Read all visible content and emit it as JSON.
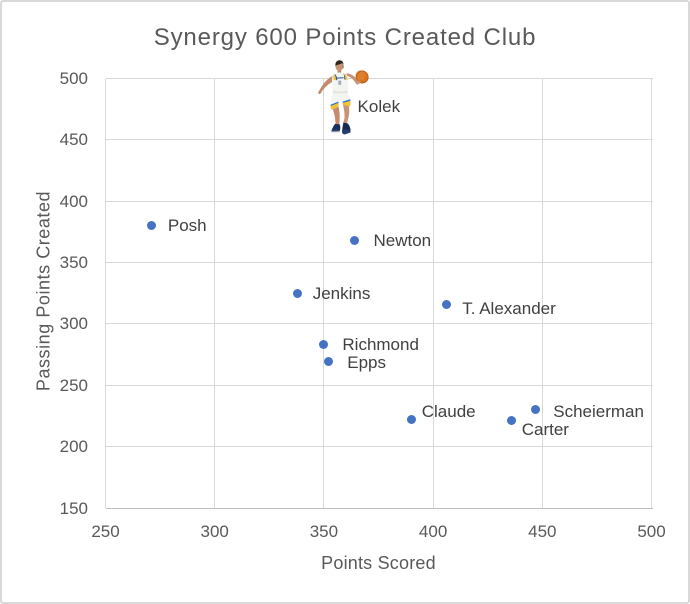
{
  "chart_data": {
    "type": "scatter",
    "title": "Synergy 600 Points Created Club",
    "xlabel": "Points Scored",
    "ylabel": "Passing Points Created",
    "xlim": [
      250,
      500
    ],
    "ylim": [
      150,
      500
    ],
    "x_ticks": [
      250,
      300,
      350,
      400,
      450,
      500
    ],
    "y_ticks": [
      150,
      200,
      250,
      300,
      350,
      400,
      450,
      500
    ],
    "grid": true,
    "legend": false,
    "series_name": "Players",
    "points": [
      {
        "label": "Kolek",
        "x": 359,
        "y": 484,
        "marker": "basketball-player-image",
        "label_offset": [
          14,
          8.5
        ]
      },
      {
        "label": "Posh",
        "x": 271,
        "y": 380,
        "marker": "dot",
        "label_offset": [
          16.5,
          -0.5
        ]
      },
      {
        "label": "Newton",
        "x": 364,
        "y": 368,
        "marker": "dot",
        "label_offset": [
          19,
          0
        ]
      },
      {
        "label": "Jenkins",
        "x": 338,
        "y": 325,
        "marker": "dot",
        "label_offset": [
          15,
          0
        ]
      },
      {
        "label": "T. Alexander",
        "x": 406,
        "y": 316,
        "marker": "dot",
        "label_offset": [
          16,
          4
        ]
      },
      {
        "label": "Richmond",
        "x": 350,
        "y": 283,
        "marker": "dot",
        "label_offset": [
          18.5,
          -0.5
        ]
      },
      {
        "label": "Epps",
        "x": 352,
        "y": 269,
        "marker": "dot",
        "label_offset": [
          19,
          0.5
        ]
      },
      {
        "label": "Claude",
        "x": 390,
        "y": 222,
        "marker": "dot",
        "label_offset": [
          10.5,
          -8
        ]
      },
      {
        "label": "Carter",
        "x": 436,
        "y": 221,
        "marker": "dot",
        "label_offset": [
          10,
          8
        ]
      },
      {
        "label": "Scheierman",
        "x": 447,
        "y": 230,
        "marker": "dot",
        "label_offset": [
          17.5,
          1.5
        ]
      }
    ]
  },
  "styles": {
    "marker_color": "#4472C4",
    "gridline_color": "#D9D9D9",
    "axis_line_color": "#BFBFBF",
    "title_color": "#595959",
    "tick_label_color": "#595959",
    "data_label_color": "#404040",
    "chart_border_color": "#D7D7D7",
    "background_color": "#FFFFFF"
  }
}
